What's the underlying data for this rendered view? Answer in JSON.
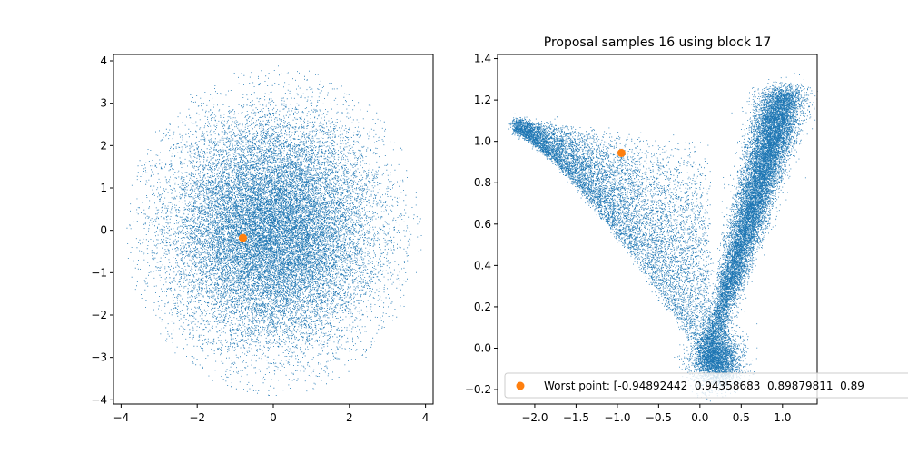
{
  "colors": {
    "samples": "#1f77b4",
    "worst": "#ff7f0e",
    "background": "#ffffff"
  },
  "chart_data": [
    {
      "type": "scatter",
      "title": "",
      "xlabel": "",
      "ylabel": "",
      "xlim": [
        -4.2,
        4.2
      ],
      "ylim": [
        -4.1,
        4.15
      ],
      "xticks": [
        -4,
        -2,
        0,
        2,
        4
      ],
      "xtick_labels": [
        "−4",
        "−2",
        "0",
        "2",
        "4"
      ],
      "yticks": [
        -4,
        -3,
        -2,
        -1,
        0,
        1,
        2,
        3,
        4
      ],
      "ytick_labels": [
        "−4",
        "−3",
        "−2",
        "−1",
        "0",
        "1",
        "2",
        "3",
        "4"
      ],
      "grid": false,
      "series": [
        {
          "style": "dense-points",
          "distribution": "standard-normal-2d",
          "center": [
            0,
            0
          ],
          "radius": 3.9
        },
        {
          "style": "marker",
          "x": [
            -0.8
          ],
          "y": [
            -0.18
          ]
        }
      ]
    },
    {
      "type": "scatter",
      "title": "Proposal samples 16 using block 17",
      "xlabel": "",
      "ylabel": "",
      "xlim": [
        -2.45,
        1.42
      ],
      "ylim": [
        -0.27,
        1.42
      ],
      "xticks": [
        -2.0,
        -1.5,
        -1.0,
        -0.5,
        0.0,
        0.5,
        1.0
      ],
      "xtick_labels": [
        "−2.0",
        "−1.5",
        "−1.0",
        "−0.5",
        "0.0",
        "0.5",
        "1.0"
      ],
      "yticks": [
        -0.2,
        0.0,
        0.2,
        0.4,
        0.6,
        0.8,
        1.0,
        1.2,
        1.4
      ],
      "ytick_labels": [
        "−0.2",
        "0.0",
        "0.2",
        "0.4",
        "0.6",
        "0.8",
        "1.0",
        "1.2",
        "1.4"
      ],
      "grid": false,
      "legend_placement": "lower-right",
      "legend": [
        {
          "label": "Worst point: [-0.94892442  0.94358683  0.89879811  0.89"
        }
      ],
      "series": [
        {
          "style": "dense-points",
          "distribution": "banana-shaped"
        },
        {
          "name": "Worst point: [-0.94892442  0.94358683  0.89879811  0.89",
          "style": "marker",
          "x": [
            -0.95
          ],
          "y": [
            0.944
          ]
        }
      ]
    }
  ]
}
